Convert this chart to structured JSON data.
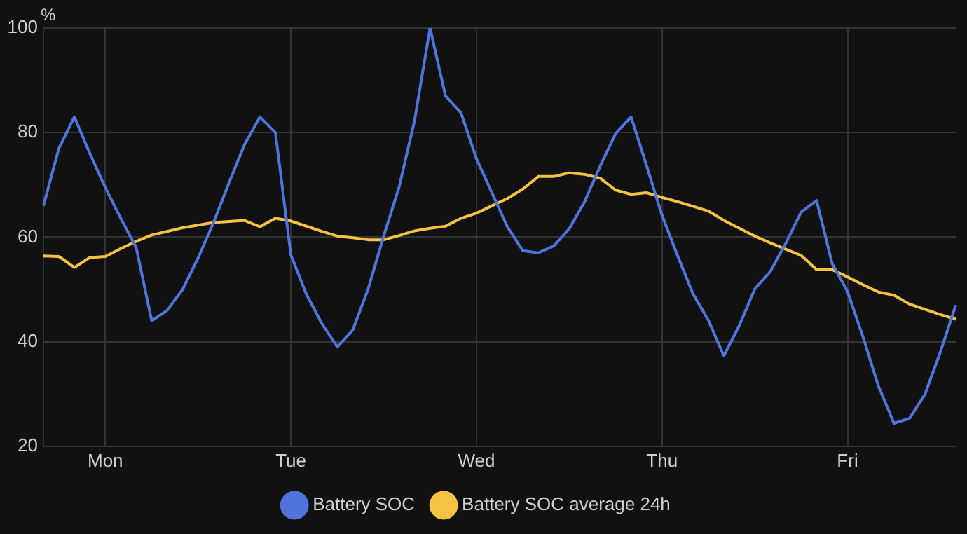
{
  "chart_data": {
    "type": "line",
    "ylabel": "%",
    "ylim": [
      20,
      100
    ],
    "categories": [
      null,
      null,
      null,
      null,
      "Mon",
      null,
      null,
      null,
      null,
      null,
      null,
      null,
      null,
      null,
      null,
      null,
      "Tue",
      null,
      null,
      null,
      null,
      null,
      null,
      null,
      null,
      null,
      null,
      null,
      "Wed",
      null,
      null,
      null,
      null,
      null,
      null,
      null,
      null,
      null,
      null,
      null,
      "Thu",
      null,
      null,
      null,
      null,
      null,
      null,
      null,
      null,
      null,
      null,
      null,
      "Fri",
      null,
      null,
      null,
      null,
      null,
      null,
      null
    ],
    "yticks": [
      20,
      40,
      60,
      80,
      100
    ],
    "grid": true,
    "legend": "bottom",
    "marker": "none",
    "line_style": "solid",
    "series": [
      {
        "name": "Battery SOC",
        "color": "#4f74dc",
        "values": [
          66,
          77,
          83,
          76,
          69.5,
          63.6,
          58,
          44,
          46,
          50,
          56,
          62.8,
          70.4,
          77.7,
          83,
          80,
          56.6,
          49.1,
          43.5,
          39,
          42.2,
          50.1,
          60.2,
          69.6,
          82.3,
          100,
          87,
          83.8,
          75,
          68.5,
          62,
          57.4,
          57,
          58.3,
          61.6,
          66.8,
          73.6,
          79.8,
          83,
          73.7,
          64.2,
          56.5,
          49.2,
          44.1,
          37.3,
          43.1,
          50.1,
          53.4,
          58.8,
          64.8,
          67,
          55,
          49.6,
          40.9,
          31.5,
          24.4,
          25.3,
          29.9,
          38,
          47
        ]
      },
      {
        "name": "Battery SOC average 24h",
        "color": "#f5c242",
        "values": [
          56.4,
          56.3,
          54.2,
          56.1,
          56.3,
          57.8,
          59.2,
          60.4,
          61.1,
          61.8,
          62.3,
          62.8,
          63,
          63.2,
          62,
          63.6,
          63.1,
          62.1,
          61.1,
          60.2,
          59.9,
          59.5,
          59.5,
          60.3,
          61.2,
          61.7,
          62.1,
          63.6,
          64.6,
          66,
          67.4,
          69.2,
          71.6,
          71.6,
          72.3,
          72,
          71.3,
          69,
          68.2,
          68.5,
          67.6,
          66.8,
          65.9,
          65,
          63.2,
          61.7,
          60.2,
          58.9,
          57.7,
          56.5,
          53.8,
          53.8,
          52.4,
          50.9,
          49.5,
          48.9,
          47.2,
          46.2,
          45.2,
          44.3
        ]
      }
    ]
  }
}
